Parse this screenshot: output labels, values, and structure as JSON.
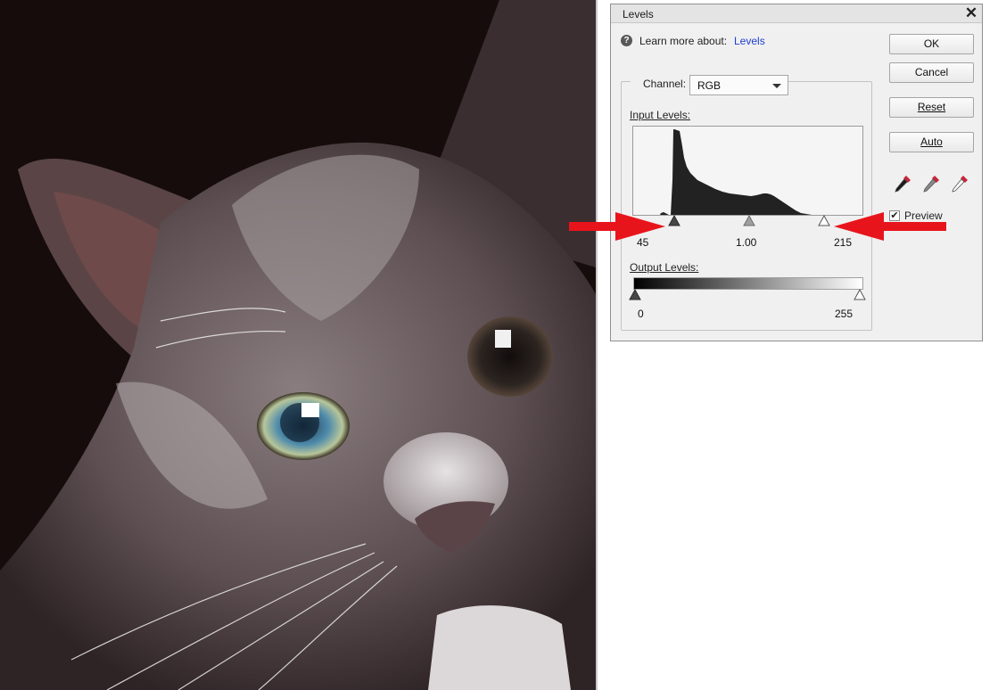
{
  "photo": {
    "subject_icon": "kitten-photo"
  },
  "dialog": {
    "title": "Levels",
    "close_icon": "close-icon",
    "help": {
      "icon_glyph": "?",
      "text": "Learn more about:",
      "link": "Levels"
    },
    "channel": {
      "label": "Channel:",
      "value": "RGB"
    },
    "input_levels": {
      "label": "Input Levels:",
      "black": "45",
      "gamma": "1.00",
      "white": "215"
    },
    "output_levels": {
      "label": "Output Levels:",
      "black": "0",
      "white": "255"
    },
    "buttons": {
      "ok": "OK",
      "cancel": "Cancel",
      "reset": "Reset",
      "auto": "Auto"
    },
    "eyedroppers": [
      "black-eyedropper-icon",
      "gray-eyedropper-icon",
      "white-eyedropper-icon"
    ],
    "preview": {
      "label": "Preview",
      "checked": true,
      "check_glyph": "✔"
    }
  },
  "annotations": {
    "arrow_color": "#e8141c"
  }
}
